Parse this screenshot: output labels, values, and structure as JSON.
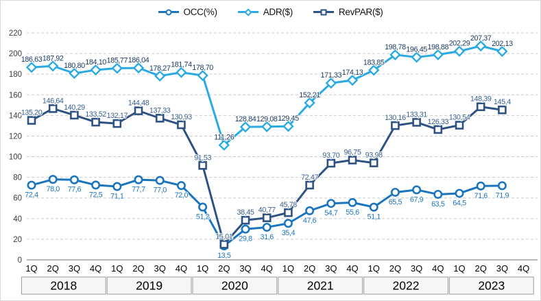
{
  "legend": {
    "items": [
      {
        "label": "OCC(%)",
        "marker": "circle",
        "color": "#1b75bc"
      },
      {
        "label": "ADR($)",
        "marker": "diamond",
        "color": "#29abe2"
      },
      {
        "label": "RevPAR($)",
        "marker": "square",
        "color": "#2e5383"
      }
    ]
  },
  "chart_data": {
    "type": "line",
    "title": "",
    "xlabel": "",
    "ylabel": "",
    "legend_position": "top-center",
    "grid": "horizontal-dashed",
    "y_axis": {
      "min": 0,
      "max": 220,
      "step": 20,
      "ticks": [
        0,
        20,
        40,
        60,
        80,
        100,
        120,
        140,
        160,
        180,
        200,
        220
      ]
    },
    "x_quarters": [
      "1Q",
      "2Q",
      "3Q",
      "4Q",
      "1Q",
      "2Q",
      "3Q",
      "4Q",
      "1Q",
      "2Q",
      "3Q",
      "4Q",
      "1Q",
      "2Q",
      "3Q",
      "4Q",
      "1Q",
      "2Q",
      "3Q",
      "4Q",
      "1Q",
      "2Q",
      "3Q",
      "4Q"
    ],
    "years": [
      "2018",
      "2019",
      "2020",
      "2021",
      "2022",
      "2023"
    ],
    "series": [
      {
        "name": "ADR($)",
        "marker": "diamond",
        "color": "#29abe2",
        "label_color": "#17375e",
        "label_position": "above",
        "values": [
          186.63,
          187.92,
          180.8,
          184.1,
          185.77,
          186.04,
          178.27,
          181.74,
          178.7,
          111.26,
          128.84,
          129.08,
          129.45,
          152.21,
          171.33,
          174.13,
          183.85,
          198.78,
          196.45,
          198.88,
          202.29,
          207.37,
          202.13,
          null
        ],
        "labels": [
          "186,63",
          "187,92",
          "180,80",
          "184,10",
          "185,77",
          "186,04",
          "178,27",
          "181,74",
          "178,70",
          "111,26",
          "128,84",
          "129,08",
          "129,45",
          "152,21",
          "171,33",
          "174,13",
          "183,85",
          "198,78",
          "196,45",
          "198,88",
          "202,29",
          "207,37",
          "202,13",
          ""
        ]
      },
      {
        "name": "OCC(%)",
        "marker": "circle",
        "color": "#1b75bc",
        "label_color": "#1b75bc",
        "label_position": "below",
        "values": [
          72.4,
          78.0,
          77.6,
          72.5,
          71.1,
          77.7,
          77.0,
          72.0,
          51.2,
          13.5,
          29.8,
          31.6,
          35.4,
          47.6,
          54.7,
          55.6,
          51.1,
          65.5,
          67.9,
          63.5,
          64.5,
          71.6,
          71.9,
          null
        ],
        "labels": [
          "72,4",
          "78,0",
          "77,6",
          "72,5",
          "71,1",
          "77,7",
          "77,0",
          "72,0",
          "51,2",
          "13,5",
          "29,8",
          "31,6",
          "35,4",
          "47,6",
          "54,7",
          "55,6",
          "51,1",
          "65,5",
          "67,9",
          "63,5",
          "64,5",
          "71,6",
          "71,9",
          ""
        ]
      },
      {
        "name": "RevPAR($)",
        "marker": "square",
        "color": "#2e5383",
        "label_color": "#36618e",
        "label_position": "above",
        "values": [
          135.2,
          146.64,
          140.29,
          133.52,
          132.17,
          144.48,
          137.33,
          130.93,
          91.53,
          15.01,
          38.45,
          40.77,
          45.78,
          72.47,
          93.7,
          96.75,
          93.98,
          130.16,
          133.31,
          126.33,
          130.54,
          148.39,
          145.4,
          null
        ],
        "labels": [
          "135,20",
          "146,64",
          "140,29",
          "133,52",
          "132,17",
          "144,48",
          "137,33",
          "130,93",
          "91,53",
          "15,01",
          "38,45",
          "40,77",
          "45,78",
          "72,47",
          "93,70",
          "96,75",
          "93,98",
          "130,16",
          "133,31",
          "126,33",
          "130,54",
          "148,39",
          "145,4",
          ""
        ]
      }
    ]
  }
}
